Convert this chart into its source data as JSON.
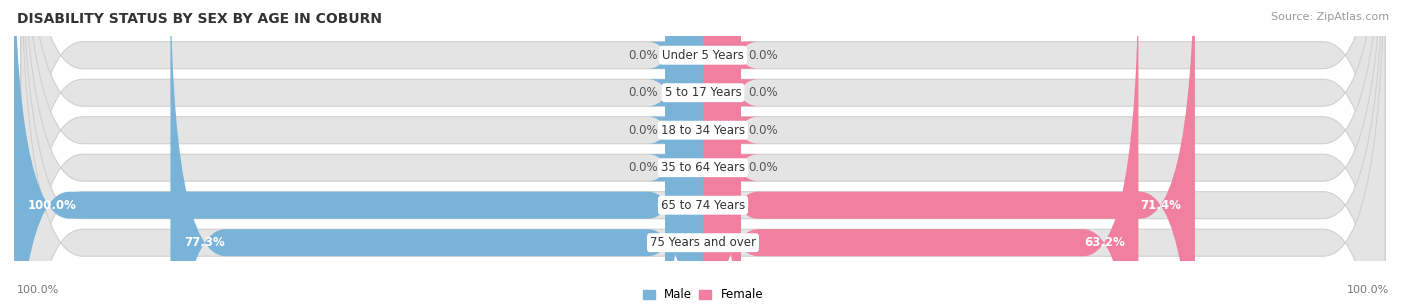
{
  "title": "DISABILITY STATUS BY SEX BY AGE IN COBURN",
  "source": "Source: ZipAtlas.com",
  "categories": [
    "Under 5 Years",
    "5 to 17 Years",
    "18 to 34 Years",
    "35 to 64 Years",
    "65 to 74 Years",
    "75 Years and over"
  ],
  "male_values": [
    0.0,
    0.0,
    0.0,
    0.0,
    100.0,
    77.3
  ],
  "female_values": [
    0.0,
    0.0,
    0.0,
    0.0,
    71.4,
    63.2
  ],
  "male_color": "#7ab3d8",
  "female_color": "#f07fa0",
  "bar_bg_color": "#e4e4e4",
  "bar_bg_outline": "#d0d0d0",
  "axis_label_left": "100.0%",
  "axis_label_right": "100.0%",
  "legend_male": "Male",
  "legend_female": "Female",
  "title_fontsize": 10,
  "source_fontsize": 8,
  "label_fontsize": 8.5,
  "cat_fontsize": 8.5,
  "tick_fontsize": 8
}
